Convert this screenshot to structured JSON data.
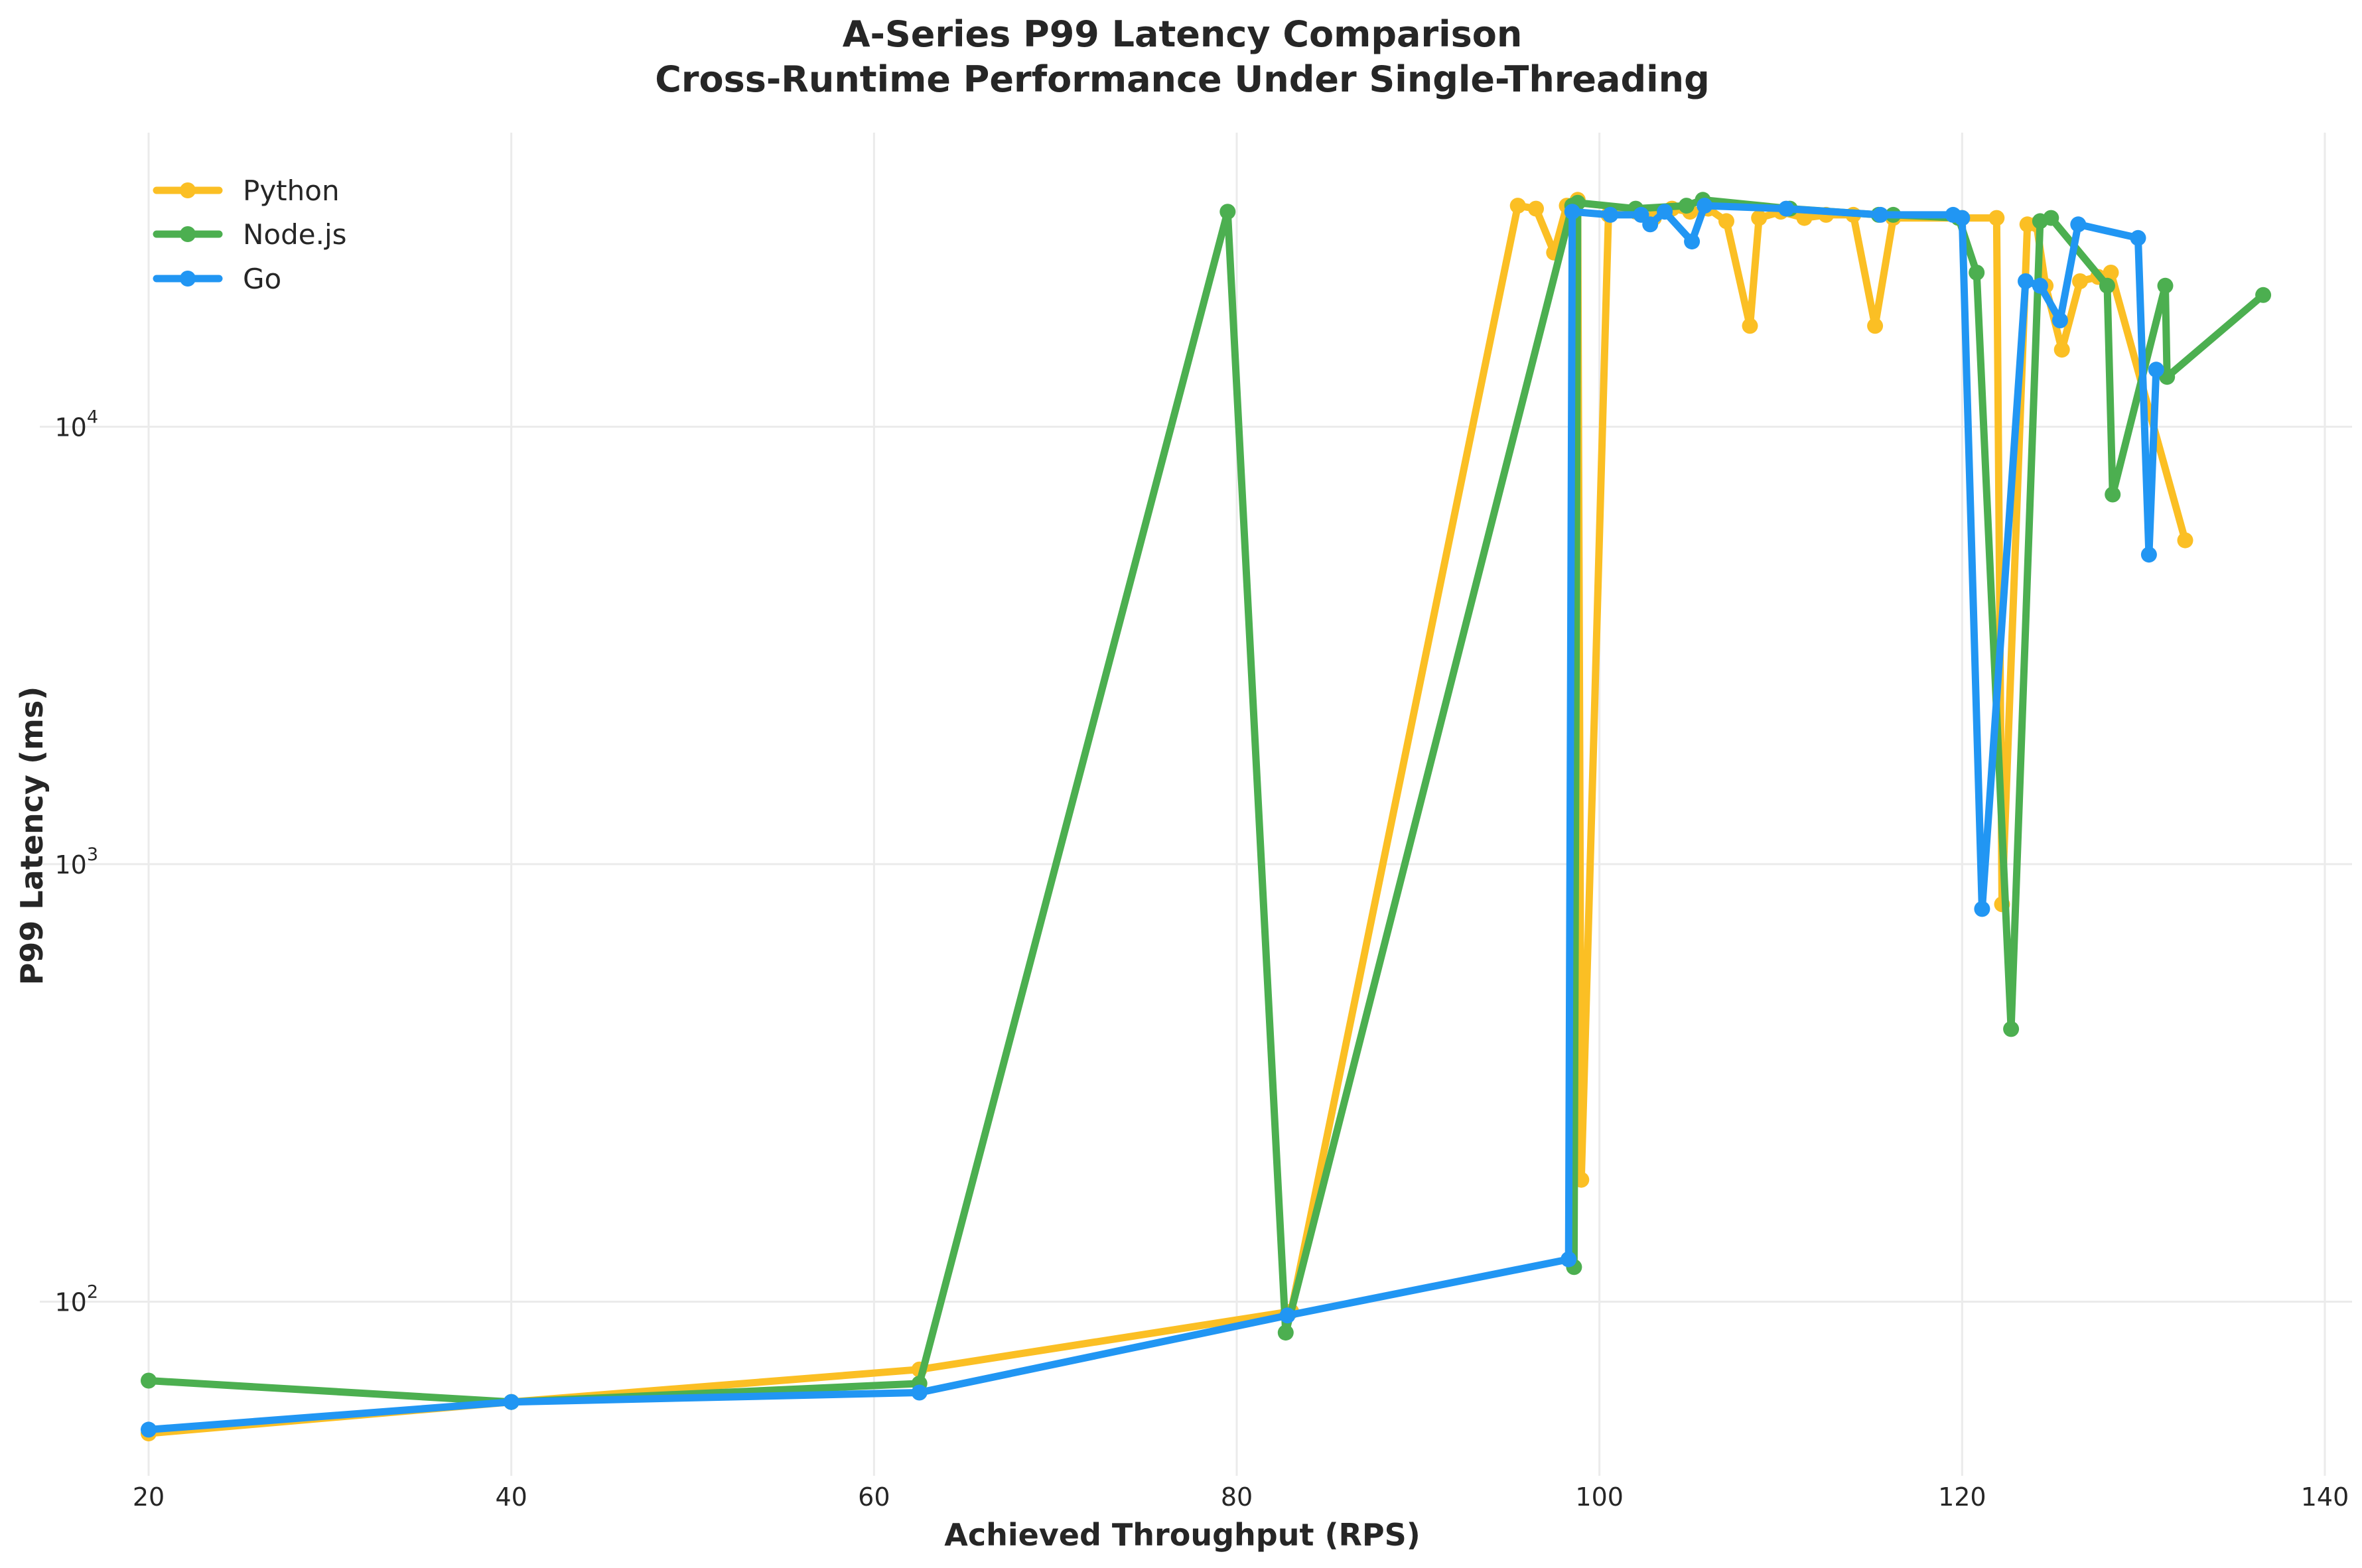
{
  "chart_data": {
    "type": "line",
    "title_line1": "A-Series P99 Latency Comparison",
    "title_line2": "Cross-Runtime Performance Under Single-Threading",
    "xlabel": "Achieved Throughput (RPS)",
    "ylabel": "P99 Latency (ms)",
    "xlim": [
      14,
      141.5
    ],
    "ylim": [
      40,
      47000
    ],
    "yscale": "log",
    "x_ticks": [
      20,
      40,
      60,
      80,
      100,
      120,
      140
    ],
    "y_ticks": [
      {
        "value": 100,
        "base": "10",
        "exp": "2"
      },
      {
        "value": 1000,
        "base": "10",
        "exp": "3"
      },
      {
        "value": 10000,
        "base": "10",
        "exp": "4"
      }
    ],
    "grid": true,
    "legend_position": "top-left",
    "series": [
      {
        "name": "Python",
        "color": "#FBBF24",
        "points": [
          [
            20,
            50
          ],
          [
            40,
            59
          ],
          [
            62.5,
            70
          ],
          [
            83,
            95
          ],
          [
            95.5,
            32000
          ],
          [
            96.5,
            31500
          ],
          [
            97.5,
            25000
          ],
          [
            98.2,
            32000
          ],
          [
            98.8,
            33000
          ],
          [
            99,
            190
          ],
          [
            100.5,
            30500
          ],
          [
            102,
            31000
          ],
          [
            103,
            30000
          ],
          [
            104,
            31500
          ],
          [
            105,
            31000
          ],
          [
            106,
            31500
          ],
          [
            107,
            29500
          ],
          [
            108.3,
            17000
          ],
          [
            108.8,
            30000
          ],
          [
            110,
            31000
          ],
          [
            111.3,
            30000
          ],
          [
            112.5,
            30500
          ],
          [
            114,
            30500
          ],
          [
            115.2,
            17000
          ],
          [
            116.2,
            30000
          ],
          [
            120,
            30000
          ],
          [
            121.9,
            30000
          ],
          [
            122.2,
            810
          ],
          [
            123.6,
            29000
          ],
          [
            124.1,
            29000
          ],
          [
            124.6,
            21000
          ],
          [
            125.5,
            15000
          ],
          [
            126.5,
            21500
          ],
          [
            127.5,
            22000
          ],
          [
            128.2,
            22500
          ],
          [
            132.3,
            5500
          ]
        ]
      },
      {
        "name": "Node.js",
        "color": "#4CAF50",
        "points": [
          [
            20,
            66
          ],
          [
            40,
            59
          ],
          [
            62.5,
            65
          ],
          [
            79.5,
            31000
          ],
          [
            82.7,
            85
          ],
          [
            98.5,
            32000
          ],
          [
            98.6,
            120
          ],
          [
            98.8,
            32500
          ],
          [
            102,
            31500
          ],
          [
            104.8,
            32000
          ],
          [
            105.7,
            33000
          ],
          [
            110.5,
            31500
          ],
          [
            115.4,
            30500
          ],
          [
            116.2,
            30500
          ],
          [
            119.8,
            30000
          ],
          [
            120.8,
            22500
          ],
          [
            122.7,
            420
          ],
          [
            124.3,
            29500
          ],
          [
            124.9,
            30000
          ],
          [
            128,
            21000
          ],
          [
            128.3,
            7000
          ],
          [
            131.2,
            21000
          ],
          [
            131.3,
            13000
          ],
          [
            136.6,
            20000
          ]
        ]
      },
      {
        "name": "Go",
        "color": "#2196F3",
        "points": [
          [
            20,
            51
          ],
          [
            40,
            59
          ],
          [
            62.5,
            62
          ],
          [
            82.8,
            93
          ],
          [
            98.3,
            125
          ],
          [
            98.5,
            31000
          ],
          [
            100.6,
            30500
          ],
          [
            102.3,
            30500
          ],
          [
            102.8,
            29000
          ],
          [
            103.6,
            31000
          ],
          [
            105.1,
            26500
          ],
          [
            105.8,
            32000
          ],
          [
            110.3,
            31500
          ],
          [
            115.5,
            30500
          ],
          [
            119.5,
            30500
          ],
          [
            120,
            30000
          ],
          [
            121.1,
            790
          ],
          [
            123.5,
            21500
          ],
          [
            124.3,
            21000
          ],
          [
            125.4,
            17500
          ],
          [
            126.4,
            29000
          ],
          [
            129.7,
            27000
          ],
          [
            130.3,
            5100
          ],
          [
            130.7,
            13500
          ]
        ]
      }
    ]
  }
}
